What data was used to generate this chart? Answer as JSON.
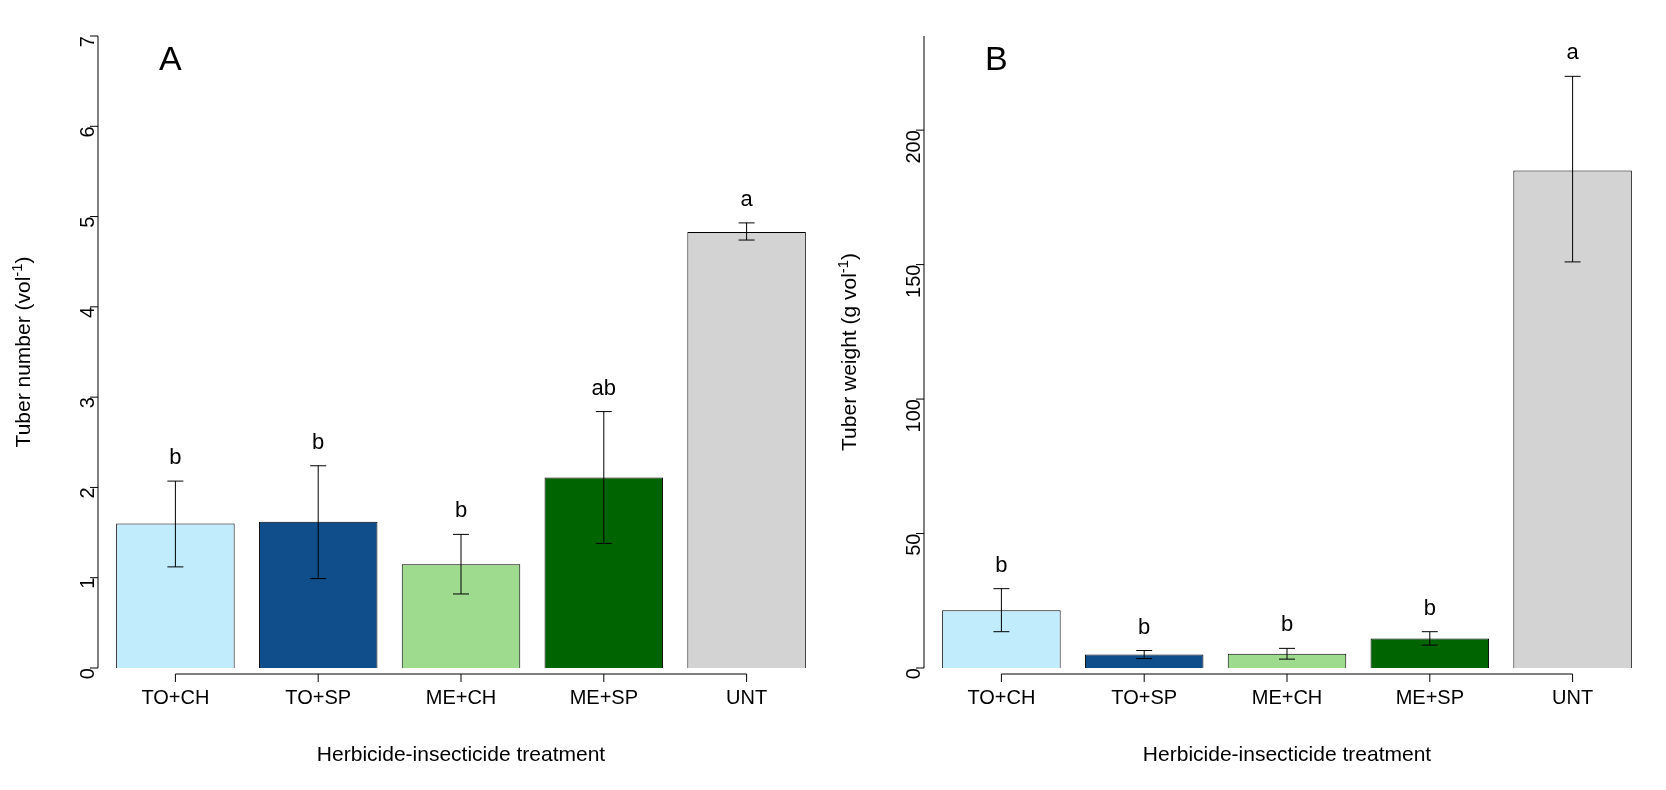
{
  "chart_data": [
    {
      "type": "bar",
      "title": "A",
      "xlabel": "Herbicide-insecticide treatment",
      "ylabel": "Tuber number (vol$^{-1}$)",
      "categories": [
        "TO+CH",
        "TO+SP",
        "ME+CH",
        "ME+SP",
        "UNT"
      ],
      "values": [
        1.6,
        1.62,
        1.15,
        2.11,
        4.83
      ],
      "colors": [
        "#c1ecfc",
        "#104e8b",
        "#9fdb8f",
        "#006400",
        "#d3d3d3"
      ],
      "errors": [
        [
          1.12,
          2.07
        ],
        [
          0.99,
          2.24
        ],
        [
          0.82,
          1.48
        ],
        [
          1.38,
          2.84
        ],
        [
          4.74,
          4.93
        ]
      ],
      "ylim": [
        0,
        7
      ],
      "yticks": [
        0,
        1,
        2,
        3,
        4,
        5,
        6,
        7
      ],
      "annotations": [
        {
          "text": "b",
          "x": "TO+CH",
          "y": 2.07
        },
        {
          "text": "b",
          "x": "TO+SP",
          "y": 2.24
        },
        {
          "text": "b",
          "x": "ME+CH",
          "y": 1.48
        },
        {
          "text": "ab",
          "x": "ME+SP",
          "y": 2.84
        },
        {
          "text": "a",
          "x": "UNT",
          "y": 4.93
        }
      ]
    },
    {
      "type": "bar",
      "title": "B",
      "xlabel": "Herbicide-insecticide treatment",
      "ylabel": "Tuber weight (g vol$^{-1}$)",
      "categories": [
        "TO+CH",
        "TO+SP",
        "ME+CH",
        "ME+SP",
        "UNT"
      ],
      "values": [
        21.5,
        5,
        5.3,
        11,
        185
      ],
      "colors": [
        "#c1ecfc",
        "#104e8b",
        "#9fdb8f",
        "#006400",
        "#d3d3d3"
      ],
      "errors": [
        [
          13.5,
          29.5
        ],
        [
          3.5,
          6.5
        ],
        [
          3.3,
          7.3
        ],
        [
          8.5,
          13.5
        ],
        [
          151,
          220
        ]
      ],
      "ylim": [
        0,
        235
      ],
      "yticks": [
        0,
        50,
        100,
        150,
        200
      ],
      "annotations": [
        {
          "text": "b",
          "x": "TO+CH",
          "y": 29.5
        },
        {
          "text": "b",
          "x": "TO+SP",
          "y": 6.5
        },
        {
          "text": "b",
          "x": "ME+CH",
          "y": 7.3
        },
        {
          "text": "b",
          "x": "ME+SP",
          "y": 13.5
        },
        {
          "text": "a",
          "x": "UNT",
          "y": 220
        }
      ]
    }
  ]
}
